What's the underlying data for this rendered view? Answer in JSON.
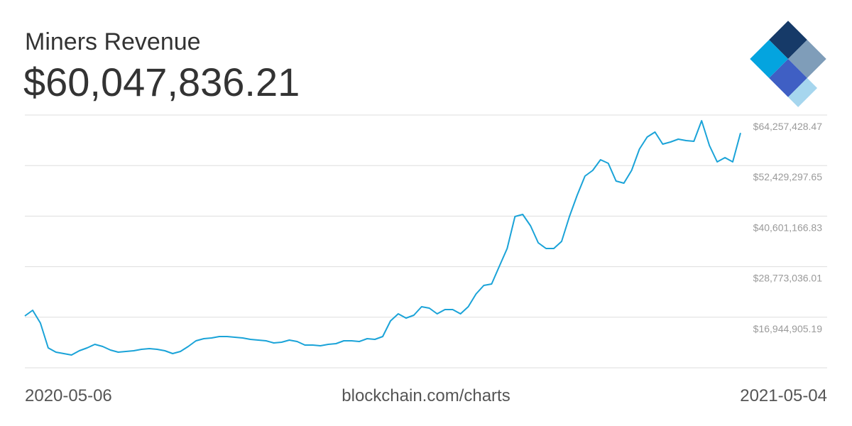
{
  "chart_data": {
    "type": "line",
    "title": "Miners Revenue",
    "subtitle": "$60,047,836.21",
    "source": "blockchain.com/charts",
    "categories": [
      "2020-05-06",
      null,
      null,
      null,
      null,
      null,
      null,
      null,
      null,
      null,
      null,
      null,
      null,
      null,
      null,
      null,
      null,
      null,
      null,
      null,
      null,
      null,
      null,
      null,
      null,
      null,
      null,
      null,
      null,
      null,
      null,
      null,
      null,
      null,
      null,
      null,
      null,
      null,
      null,
      null,
      null,
      null,
      null,
      null,
      null,
      null,
      null,
      null,
      null,
      null,
      null,
      null,
      null,
      null,
      null,
      null,
      null,
      null,
      null,
      null,
      null,
      null,
      null,
      null,
      null,
      null,
      null,
      null,
      null,
      null,
      null,
      null,
      null,
      null,
      null,
      null,
      null,
      null,
      null,
      null,
      null,
      null,
      null,
      null,
      null,
      null,
      null,
      null,
      null,
      null,
      null,
      null,
      "2021-05-04"
    ],
    "values": [
      17240000,
      18570000,
      15580000,
      9770000,
      8770000,
      8440000,
      8110000,
      9110000,
      9770000,
      10600000,
      10100000,
      9270000,
      8770000,
      8940000,
      9110000,
      9440000,
      9600000,
      9440000,
      9110000,
      8440000,
      8940000,
      10100000,
      11430000,
      11930000,
      12090000,
      12420000,
      12420000,
      12260000,
      12090000,
      11760000,
      11590000,
      11430000,
      10930000,
      11100000,
      11590000,
      11260000,
      10430000,
      10430000,
      10270000,
      10600000,
      10770000,
      11430000,
      11430000,
      11260000,
      11930000,
      11760000,
      12420000,
      16080000,
      17740000,
      16750000,
      17410000,
      19410000,
      19070000,
      17740000,
      18740000,
      18740000,
      17740000,
      19410000,
      22390000,
      24390000,
      24720000,
      28870000,
      33030000,
      40500000,
      41000000,
      38340000,
      34350000,
      33030000,
      33030000,
      34690000,
      40500000,
      45480000,
      49970000,
      51300000,
      53790000,
      52960000,
      48810000,
      48310000,
      51300000,
      56280000,
      59110000,
      60270000,
      57450000,
      57950000,
      58610000,
      58280000,
      58110000,
      62930000,
      57110000,
      53290000,
      54290000,
      53290000,
      60047836.21
    ],
    "color": "#1aa3d8",
    "ylim": [
      5116774.37,
      64257428.47
    ],
    "yticks": [
      {
        "value": 16944905.19,
        "label": "$16,944,905.19"
      },
      {
        "value": 28773036.01,
        "label": "$28,773,036.01"
      },
      {
        "value": 40601166.83,
        "label": "$40,601,166.83"
      },
      {
        "value": 52429297.65,
        "label": "$52,429,297.65"
      },
      {
        "value": 64257428.47,
        "label": "$64,257,428.47"
      }
    ],
    "grid": true
  }
}
